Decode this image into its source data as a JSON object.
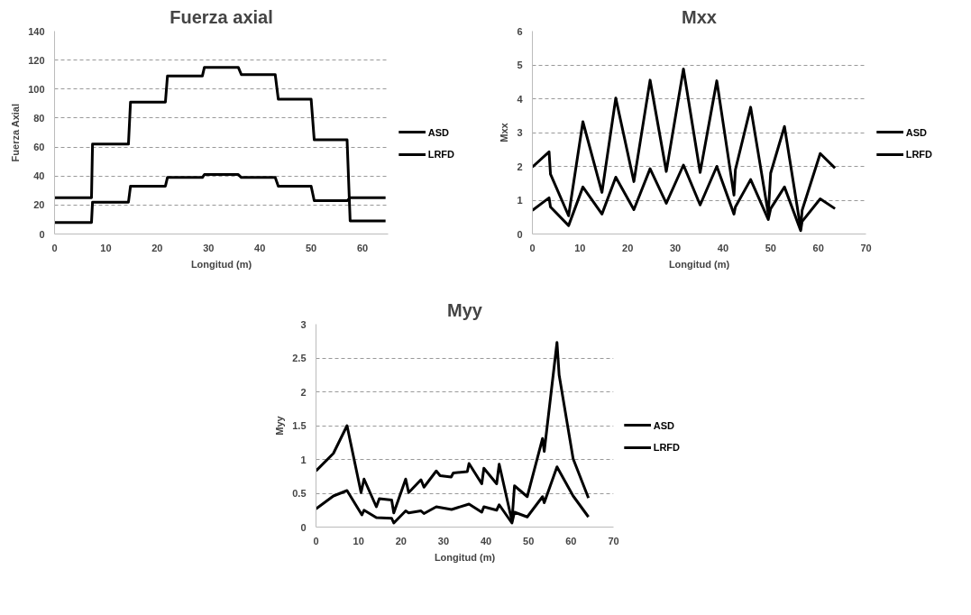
{
  "chart_data": [
    {
      "type": "line",
      "title": "Fuerza axial",
      "xlabel": "Longitud (m)",
      "ylabel": "Fuerza Axial",
      "xlim": [
        0,
        65
      ],
      "xticks": [
        0,
        10,
        20,
        30,
        40,
        50,
        60
      ],
      "ylim": [
        0,
        140
      ],
      "yticks": [
        0,
        20,
        40,
        60,
        80,
        100,
        120,
        140
      ],
      "grid": "y",
      "legend": "right",
      "marker": "none",
      "line_style": "solid",
      "x": [
        0,
        7.2,
        7.4,
        14.4,
        14.8,
        21.6,
        22,
        28.8,
        29.2,
        35.8,
        36.4,
        43,
        43.6,
        50,
        50.6,
        57,
        57.6,
        64.5
      ],
      "series": [
        {
          "name": "ASD",
          "color": "#000000",
          "values": [
            8,
            8,
            22,
            22,
            33,
            33,
            39,
            39,
            41,
            41,
            39,
            39,
            33,
            33,
            23,
            23,
            25,
            25
          ]
        },
        {
          "name": "LRFD",
          "color": "#000000",
          "values": [
            25,
            25,
            62,
            62,
            91,
            91,
            109,
            109,
            115,
            115,
            110,
            110,
            93,
            93,
            65,
            65,
            9,
            9
          ]
        }
      ]
    },
    {
      "type": "line",
      "title": "Mxx",
      "xlabel": "Longitud (m)",
      "ylabel": "Mxx",
      "xlim": [
        0,
        70
      ],
      "xticks": [
        0,
        10,
        20,
        30,
        40,
        50,
        60,
        70
      ],
      "ylim": [
        0,
        6
      ],
      "yticks": [
        0,
        1,
        2,
        3,
        4,
        5,
        6
      ],
      "grid": "y",
      "legend": "right",
      "marker": "none",
      "line_style": "solid",
      "x": [
        0,
        3.5,
        3.8,
        7.6,
        10.6,
        14.6,
        17.5,
        21.3,
        24.7,
        28.1,
        31.7,
        35.2,
        38.7,
        42.3,
        42.6,
        45.8,
        49.5,
        50,
        52.9,
        56.3,
        56.6,
        60.4,
        63.5
      ],
      "series": [
        {
          "name": "ASD",
          "color": "#000000",
          "values": [
            0.7,
            1.07,
            0.8,
            0.25,
            1.39,
            0.59,
            1.68,
            0.72,
            1.93,
            0.91,
            2.04,
            0.86,
            2.0,
            0.59,
            0.8,
            1.61,
            0.43,
            0.75,
            1.39,
            0.1,
            0.37,
            1.04,
            0.75
          ]
        },
        {
          "name": "LRFD",
          "color": "#000000",
          "values": [
            1.98,
            2.43,
            1.77,
            0.54,
            3.32,
            1.23,
            4.02,
            1.55,
            4.55,
            1.85,
            4.88,
            1.82,
            4.53,
            1.15,
            1.9,
            3.75,
            0.6,
            1.8,
            3.18,
            0.16,
            0.7,
            2.38,
            1.95
          ]
        }
      ]
    },
    {
      "type": "line",
      "title": "Myy",
      "xlabel": "Longitud (m)",
      "ylabel": "Myy",
      "xlim": [
        0,
        70
      ],
      "xticks": [
        0,
        10,
        20,
        30,
        40,
        50,
        60,
        70
      ],
      "ylim": [
        0,
        3
      ],
      "yticks": [
        0,
        0.5,
        1,
        1.5,
        2,
        2.5,
        3
      ],
      "grid": "y",
      "legend": "right",
      "marker": "none",
      "line_style": "solid",
      "series": [
        {
          "name": "ASD",
          "color": "#000000",
          "x": [
            0,
            4.1,
            7.3,
            10.8,
            11.3,
            14.2,
            17.8,
            18.3,
            21.1,
            21.8,
            24.7,
            25.4,
            28.3,
            31.9,
            36,
            39,
            39.5,
            42.5,
            43.1,
            46.1,
            46.7,
            49.7,
            53.3,
            53.7,
            56.7,
            60.5,
            64.1
          ],
          "values": [
            0.27,
            0.46,
            0.54,
            0.18,
            0.25,
            0.14,
            0.13,
            0.06,
            0.24,
            0.21,
            0.24,
            0.2,
            0.3,
            0.26,
            0.34,
            0.22,
            0.3,
            0.25,
            0.33,
            0.06,
            0.22,
            0.15,
            0.45,
            0.36,
            0.89,
            0.46,
            0.15
          ]
        },
        {
          "name": "LRFD",
          "color": "#000000",
          "x": [
            0,
            4.1,
            7.3,
            10.6,
            11.3,
            14.2,
            14.9,
            17.8,
            18.3,
            21.1,
            21.8,
            24.7,
            25.4,
            28.3,
            29.2,
            31.8,
            32.3,
            35.6,
            36,
            39,
            39.5,
            42.5,
            43.1,
            46.1,
            46.7,
            49.7,
            53.3,
            53.7,
            56.7,
            57.2,
            60.5,
            64.1
          ],
          "values": [
            0.83,
            1.09,
            1.5,
            0.51,
            0.71,
            0.3,
            0.42,
            0.4,
            0.21,
            0.71,
            0.51,
            0.7,
            0.59,
            0.83,
            0.76,
            0.74,
            0.8,
            0.82,
            0.94,
            0.64,
            0.87,
            0.64,
            0.93,
            0.09,
            0.61,
            0.45,
            1.31,
            1.12,
            2.73,
            2.25,
            1.01,
            0.43
          ]
        }
      ]
    }
  ]
}
